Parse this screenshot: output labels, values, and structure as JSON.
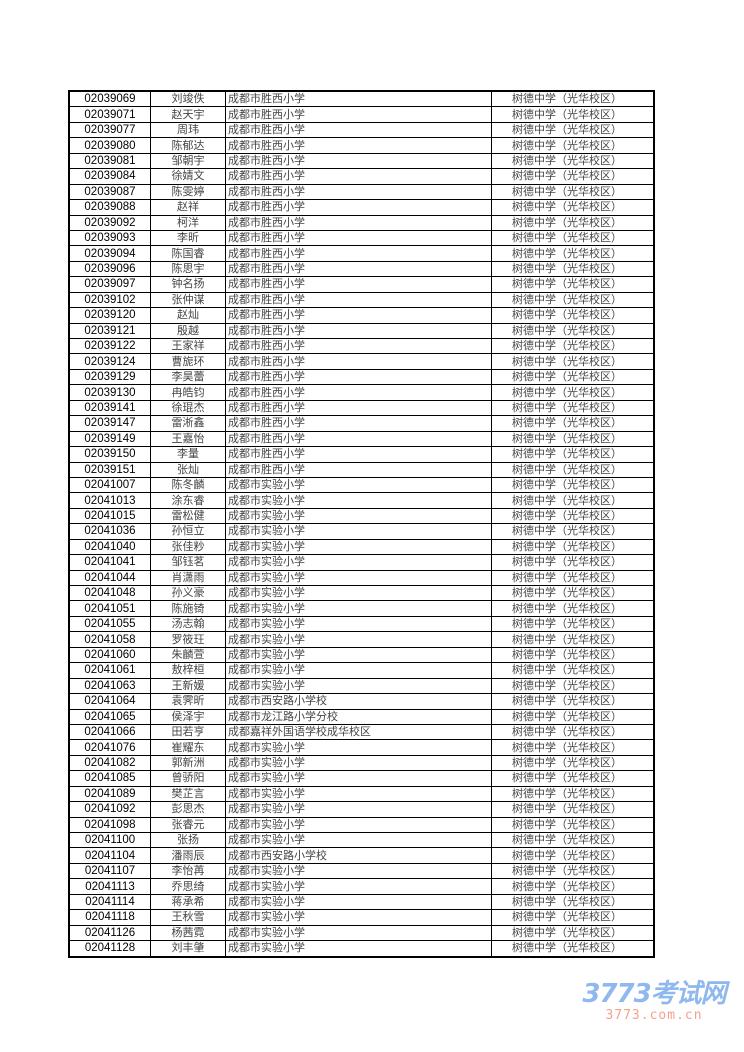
{
  "rows": [
    [
      "02039069",
      "刘竣佚",
      "成都市胜西小学",
      "树德中学（光华校区）"
    ],
    [
      "02039071",
      "赵天宇",
      "成都市胜西小学",
      "树德中学（光华校区）"
    ],
    [
      "02039077",
      "周玮",
      "成都市胜西小学",
      "树德中学（光华校区）"
    ],
    [
      "02039080",
      "陈郁达",
      "成都市胜西小学",
      "树德中学（光华校区）"
    ],
    [
      "02039081",
      "邹朝宇",
      "成都市胜西小学",
      "树德中学（光华校区）"
    ],
    [
      "02039084",
      "徐婧文",
      "成都市胜西小学",
      "树德中学（光华校区）"
    ],
    [
      "02039087",
      "陈雯婷",
      "成都市胜西小学",
      "树德中学（光华校区）"
    ],
    [
      "02039088",
      "赵祥",
      "成都市胜西小学",
      "树德中学（光华校区）"
    ],
    [
      "02039092",
      "柯洋",
      "成都市胜西小学",
      "树德中学（光华校区）"
    ],
    [
      "02039093",
      "李昕",
      "成都市胜西小学",
      "树德中学（光华校区）"
    ],
    [
      "02039094",
      "陈国睿",
      "成都市胜西小学",
      "树德中学（光华校区）"
    ],
    [
      "02039096",
      "陈思宇",
      "成都市胜西小学",
      "树德中学（光华校区）"
    ],
    [
      "02039097",
      "钟名扬",
      "成都市胜西小学",
      "树德中学（光华校区）"
    ],
    [
      "02039102",
      "张仲谋",
      "成都市胜西小学",
      "树德中学（光华校区）"
    ],
    [
      "02039120",
      "赵灿",
      "成都市胜西小学",
      "树德中学（光华校区）"
    ],
    [
      "02039121",
      "殷越",
      "成都市胜西小学",
      "树德中学（光华校区）"
    ],
    [
      "02039122",
      "王家祥",
      "成都市胜西小学",
      "树德中学（光华校区）"
    ],
    [
      "02039124",
      "曹旎环",
      "成都市胜西小学",
      "树德中学（光华校区）"
    ],
    [
      "02039129",
      "李昊蕾",
      "成都市胜西小学",
      "树德中学（光华校区）"
    ],
    [
      "02039130",
      "冉皓钧",
      "成都市胜西小学",
      "树德中学（光华校区）"
    ],
    [
      "02039141",
      "徐琨杰",
      "成都市胜西小学",
      "树德中学（光华校区）"
    ],
    [
      "02039147",
      "雷淅鑫",
      "成都市胜西小学",
      "树德中学（光华校区）"
    ],
    [
      "02039149",
      "王嘉怡",
      "成都市胜西小学",
      "树德中学（光华校区）"
    ],
    [
      "02039150",
      "李量",
      "成都市胜西小学",
      "树德中学（光华校区）"
    ],
    [
      "02039151",
      "张灿",
      "成都市胜西小学",
      "树德中学（光华校区）"
    ],
    [
      "02041007",
      "陈冬麟",
      "成都市实验小学",
      "树德中学（光华校区）"
    ],
    [
      "02041013",
      "涂东睿",
      "成都市实验小学",
      "树德中学（光华校区）"
    ],
    [
      "02041015",
      "雷松健",
      "成都市实验小学",
      "树德中学（光华校区）"
    ],
    [
      "02041036",
      "孙恒立",
      "成都市实验小学",
      "树德中学（光华校区）"
    ],
    [
      "02041040",
      "张佳粆",
      "成都市实验小学",
      "树德中学（光华校区）"
    ],
    [
      "02041041",
      "邹钰茗",
      "成都市实验小学",
      "树德中学（光华校区）"
    ],
    [
      "02041044",
      "肖潇雨",
      "成都市实验小学",
      "树德中学（光华校区）"
    ],
    [
      "02041048",
      "孙义豪",
      "成都市实验小学",
      "树德中学（光华校区）"
    ],
    [
      "02041051",
      "陈施锜",
      "成都市实验小学",
      "树德中学（光华校区）"
    ],
    [
      "02041055",
      "汤志翰",
      "成都市实验小学",
      "树德中学（光华校区）"
    ],
    [
      "02041058",
      "罗筱玨",
      "成都市实验小学",
      "树德中学（光华校区）"
    ],
    [
      "02041060",
      "朱麟萱",
      "成都市实验小学",
      "树德中学（光华校区）"
    ],
    [
      "02041061",
      "敖梓桓",
      "成都市实验小学",
      "树德中学（光华校区）"
    ],
    [
      "02041063",
      "王新媛",
      "成都市实验小学",
      "树德中学（光华校区）"
    ],
    [
      "02041064",
      "袁霁昕",
      "成都市西安路小学校",
      "树德中学（光华校区）"
    ],
    [
      "02041065",
      "侯泽宇",
      "成都市龙江路小学分校",
      "树德中学（光华校区）"
    ],
    [
      "02041066",
      "田若亨",
      "成都嘉祥外国语学校成华校区",
      "树德中学（光华校区）"
    ],
    [
      "02041076",
      "崔耀东",
      "成都市实验小学",
      "树德中学（光华校区）"
    ],
    [
      "02041082",
      "郭新洲",
      "成都市实验小学",
      "树德中学（光华校区）"
    ],
    [
      "02041085",
      "曾骄阳",
      "成都市实验小学",
      "树德中学（光华校区）"
    ],
    [
      "02041089",
      "樊芷言",
      "成都市实验小学",
      "树德中学（光华校区）"
    ],
    [
      "02041092",
      "彭思杰",
      "成都市实验小学",
      "树德中学（光华校区）"
    ],
    [
      "02041098",
      "张睿元",
      "成都市实验小学",
      "树德中学（光华校区）"
    ],
    [
      "02041100",
      "张扬",
      "成都市实验小学",
      "树德中学（光华校区）"
    ],
    [
      "02041104",
      "潘雨辰",
      "成都市西安路小学校",
      "树德中学（光华校区）"
    ],
    [
      "02041107",
      "李怡苒",
      "成都市实验小学",
      "树德中学（光华校区）"
    ],
    [
      "02041113",
      "乔思绮",
      "成都市实验小学",
      "树德中学（光华校区）"
    ],
    [
      "02041114",
      "蒋承希",
      "成都市实验小学",
      "树德中学（光华校区）"
    ],
    [
      "02041118",
      "王秋雪",
      "成都市实验小学",
      "树德中学（光华校区）"
    ],
    [
      "02041126",
      "杨茜霓",
      "成都市实验小学",
      "树德中学（光华校区）"
    ],
    [
      "02041128",
      "刘丰肇",
      "成都市实验小学",
      "树德中学（光华校区）"
    ]
  ],
  "watermark": {
    "logo": "3773考试网",
    "url": "3773.com.cn"
  }
}
